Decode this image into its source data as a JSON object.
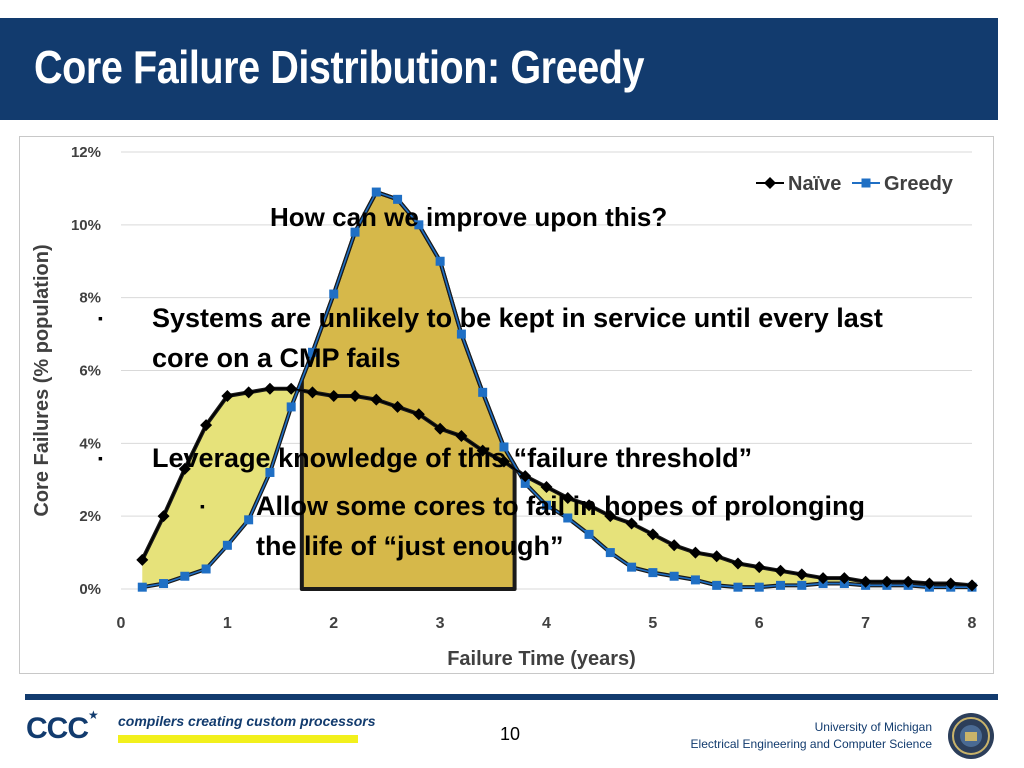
{
  "slide": {
    "title": "Core Failure Distribution: Greedy",
    "question": "How can we improve upon this?",
    "bullets": [
      "Systems are unlikely to be kept in service until every last core on a CMP fails",
      "Leverage knowledge of this  “failure threshold”"
    ],
    "sub_bullet": "Allow some cores to fail in hopes of prolonging the life of “just enough”",
    "bullet_glyph": "▪",
    "page_number": "10"
  },
  "footer": {
    "logo_text": "CCC",
    "tagline": "compilers creating custom processors",
    "university_line1": "University of Michigan",
    "university_line2": "Electrical Engineering and Computer Science",
    "colors": {
      "brand_blue": "#123b6e",
      "tagline_highlight": "#f2f01c"
    }
  },
  "chart_data": {
    "type": "line",
    "title": "",
    "xlabel": "Failure Time (years)",
    "ylabel": "Core Failures (%  population)",
    "xlim": [
      0,
      8
    ],
    "ylim": [
      0,
      12
    ],
    "x_ticks": [
      0,
      1,
      2,
      3,
      4,
      5,
      6,
      7,
      8
    ],
    "y_ticks": [
      "0%",
      "2%",
      "4%",
      "6%",
      "8%",
      "10%",
      "12%"
    ],
    "grid": "horizontal",
    "legend_position": "top-right",
    "x": [
      0.2,
      0.4,
      0.6,
      0.8,
      1.0,
      1.2,
      1.4,
      1.6,
      1.8,
      2.0,
      2.2,
      2.4,
      2.6,
      2.8,
      3.0,
      3.2,
      3.4,
      3.6,
      3.8,
      4.0,
      4.2,
      4.4,
      4.6,
      4.8,
      5.0,
      5.2,
      5.4,
      5.6,
      5.8,
      6.0,
      6.2,
      6.4,
      6.6,
      6.8,
      7.0,
      7.2,
      7.4,
      7.6,
      7.8,
      8.0
    ],
    "series": [
      {
        "name": "Naïve",
        "color": "#000000",
        "marker": "diamond",
        "values": [
          0.8,
          2.0,
          3.3,
          4.5,
          5.3,
          5.4,
          5.5,
          5.5,
          5.4,
          5.3,
          5.3,
          5.2,
          5.0,
          4.8,
          4.4,
          4.2,
          3.8,
          3.5,
          3.1,
          2.8,
          2.5,
          2.3,
          2.0,
          1.8,
          1.5,
          1.2,
          1.0,
          0.9,
          0.7,
          0.6,
          0.5,
          0.4,
          0.3,
          0.3,
          0.2,
          0.2,
          0.2,
          0.15,
          0.15,
          0.1
        ]
      },
      {
        "name": "Greedy",
        "color": "#1f6fc4",
        "marker": "square",
        "values": [
          0.05,
          0.15,
          0.35,
          0.55,
          1.2,
          1.9,
          3.2,
          5.0,
          6.5,
          8.1,
          9.8,
          10.9,
          10.7,
          10.0,
          9.0,
          7.0,
          5.4,
          3.9,
          2.9,
          2.3,
          1.95,
          1.5,
          1.0,
          0.6,
          0.45,
          0.35,
          0.25,
          0.1,
          0.05,
          0.05,
          0.1,
          0.1,
          0.15,
          0.15,
          0.1,
          0.1,
          0.1,
          0.05,
          0.05,
          0.05
        ]
      }
    ],
    "highlight": {
      "x_range": [
        1.7,
        3.7
      ],
      "color": "#d6b84a"
    },
    "fill_color": "#e6e27a"
  }
}
